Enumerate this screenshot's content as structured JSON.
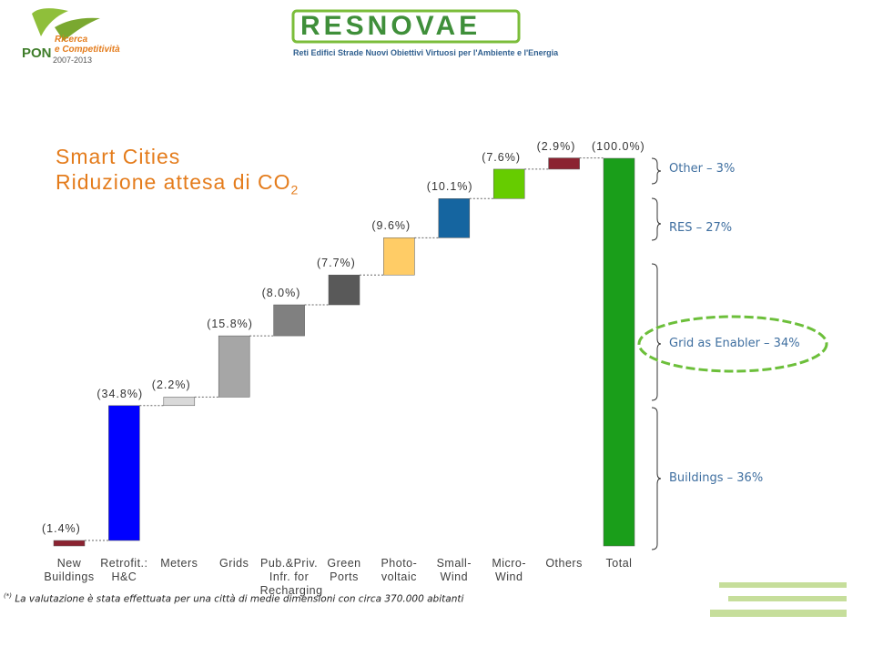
{
  "logos": {
    "pon": "PON",
    "pon_subtitle": "Ricerca\ne Competitività",
    "pon_years": "2007-2013",
    "resnovae": "RESNOVAE",
    "resnovae_subtitle": "Reti Edifici Strade Nuovi Obiettivi Virtuosi per l'Ambiente e l'Energia"
  },
  "chart_data": {
    "type": "waterfall",
    "title": "Smart Cities",
    "subtitle": "Riduzione attesa di CO",
    "subtitle_subscript": "2",
    "categories": [
      "New\nBuildings",
      "Retrofit.:\nH&C",
      "Meters",
      "Grids",
      "Pub.&Priv.\nInfr. for\nRecharging",
      "Green\nPorts",
      "Photo-\nvoltaic",
      "Small-\nWind",
      "Micro-\nWind",
      "Others",
      "Total"
    ],
    "values": [
      1.4,
      34.8,
      2.2,
      15.8,
      8.0,
      7.7,
      9.6,
      10.1,
      7.6,
      2.9,
      100.0
    ],
    "value_labels": [
      "(1.4%)",
      "(34.8%)",
      "(2.2%)",
      "(15.8%)",
      "(8.0%)",
      "(7.7%)",
      "(9.6%)",
      "(10.1%)",
      "(7.6%)",
      "(2.9%)",
      "(100.0%)"
    ],
    "colors": [
      "#8b2331",
      "#0000ff",
      "#d9d9d9",
      "#a6a6a6",
      "#808080",
      "#595959",
      "#ffcc66",
      "#1565a0",
      "#66cc00",
      "#8b2331",
      "#1a9e1a"
    ],
    "annotations": [
      "Other – 3%",
      "RES – 27%",
      "Grid as Enabler – 34%",
      "Buildings – 36%"
    ],
    "footnote_mark": "(*)",
    "footnote": "La valutazione è stata effettuata per una città di medie dimensioni con circa 370.000 abitanti"
  }
}
